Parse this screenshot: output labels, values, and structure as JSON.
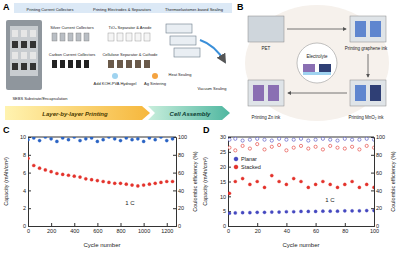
{
  "panel_labels": [
    "A",
    "B",
    "C",
    "D"
  ],
  "panel_a": {
    "headers": [
      "Printing Current Collectors",
      "Printing Electrodes & Separators",
      "Thermoelastomer-based Sealing"
    ],
    "callouts": [
      "Silver Current Collectors",
      "Carbon Current Collectors",
      "SEBS Substrate/Encapsulation",
      "TiO₂ Separator & Anode",
      "Cellulose Separator & Cathode",
      "Add KOH-PVA Hydrogel",
      "Ag Sintering",
      "Heat Sealing",
      "Vacuum Sealing"
    ],
    "stages": [
      "Layer-by-layer Printing",
      "Cell Assembly"
    ]
  },
  "panel_b": {
    "steps": [
      "PET",
      "Printing graphene ink",
      "Printing MnO₂ ink",
      "Printing Zn ink"
    ],
    "center": "Electrolyte"
  },
  "chart_data": [
    {
      "type": "scatter",
      "xlabel": "Cycle number",
      "ylabel": "Capacity (mAh/cm²)",
      "y2label": "Coulombic efficiency (%)",
      "annotation": "1 C",
      "x": [
        0,
        50,
        100,
        150,
        200,
        250,
        300,
        350,
        400,
        450,
        500,
        550,
        600,
        650,
        700,
        750,
        800,
        850,
        900,
        950,
        1000,
        1050,
        1100,
        1150,
        1200,
        1250
      ],
      "xlim": [
        0,
        1280
      ],
      "xticks": [
        0,
        200,
        400,
        600,
        800,
        1000,
        1200
      ],
      "ylim": [
        0,
        10
      ],
      "yticks": [
        0,
        2,
        4,
        6,
        8,
        10
      ],
      "y2lim": [
        0,
        100
      ],
      "y2ticks": [
        0,
        20,
        40,
        60,
        80,
        100
      ],
      "grid": false,
      "series": [
        {
          "color": "#e3322b",
          "marker": "circle",
          "values": [
            7.6,
            6.8,
            6.5,
            6.3,
            6.1,
            5.9,
            5.8,
            5.7,
            5.6,
            5.5,
            5.3,
            5.2,
            5.1,
            5.0,
            4.9,
            4.8,
            4.8,
            4.7,
            4.6,
            4.5,
            4.6,
            4.7,
            4.8,
            4.9,
            5.0,
            5.0
          ]
        },
        {
          "color": "#2a63c4",
          "marker": "circle",
          "axis": "y2",
          "values": [
            97,
            99,
            96,
            100,
            98,
            95,
            99,
            97,
            100,
            96,
            98,
            99,
            95,
            97,
            100,
            98,
            96,
            99,
            97,
            98,
            95,
            99,
            97,
            100,
            96,
            98
          ]
        }
      ]
    },
    {
      "type": "scatter",
      "xlabel": "Cycle number",
      "ylabel": "Capacity (mAh/cm²)",
      "y2label": "Coulombic efficiency (%)",
      "annotation": "1 C",
      "x": [
        1,
        5,
        10,
        15,
        20,
        25,
        30,
        35,
        40,
        45,
        50,
        55,
        60,
        65,
        70,
        75,
        80,
        85,
        90,
        95,
        100
      ],
      "xlim": [
        0,
        100
      ],
      "xticks": [
        0,
        20,
        40,
        60,
        80,
        100
      ],
      "ylim": [
        0,
        30
      ],
      "yticks": [
        0,
        5,
        10,
        15,
        20,
        25,
        30
      ],
      "y2lim": [
        0,
        100
      ],
      "y2ticks": [
        0,
        20,
        40,
        60,
        80,
        100
      ],
      "grid": false,
      "legend": "upper left",
      "series": [
        {
          "name": "Planar",
          "color": "#4548c0",
          "marker": "circle",
          "values": [
            4.3,
            4.4,
            4.5,
            4.5,
            4.6,
            4.6,
            4.7,
            4.7,
            4.8,
            4.8,
            4.9,
            4.9,
            4.9,
            5.0,
            5.0,
            5.0,
            5.1,
            5.1,
            5.1,
            5.2,
            5.2
          ]
        },
        {
          "name": "Stacked",
          "color": "#e3322b",
          "marker": "circle",
          "values": [
            11,
            15,
            16,
            14,
            15,
            13,
            17,
            15,
            14,
            16,
            15,
            13,
            14,
            15,
            14,
            13,
            14,
            15,
            13,
            14,
            13
          ]
        },
        {
          "color": "#e3322b",
          "marker": "circle-open",
          "axis": "y2",
          "values": [
            88,
            85,
            90,
            87,
            92,
            86,
            89,
            91,
            85,
            88,
            90,
            87,
            89,
            86,
            90,
            88,
            87,
            89,
            86,
            90,
            88
          ]
        },
        {
          "color": "#4548c0",
          "marker": "circle-open",
          "axis": "y2",
          "values": [
            97,
            98,
            96,
            97,
            98,
            97,
            96,
            98,
            97,
            97,
            98,
            96,
            97,
            98,
            97,
            96,
            98,
            97,
            97,
            98,
            97
          ]
        }
      ]
    }
  ]
}
